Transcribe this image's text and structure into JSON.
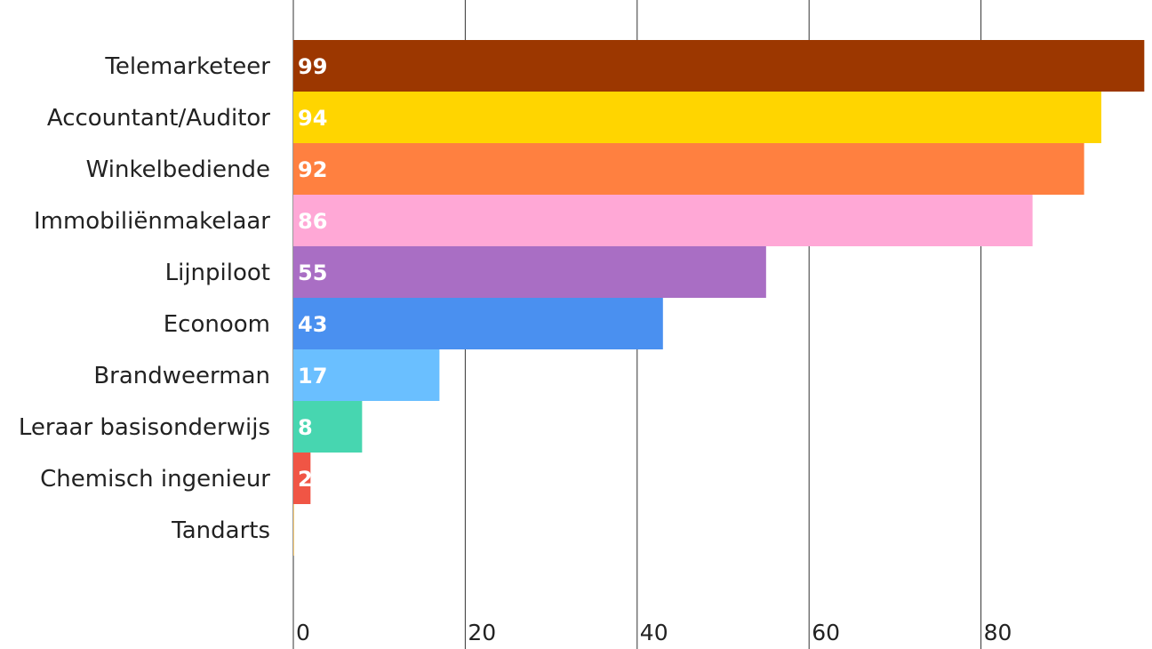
{
  "chart_data": {
    "type": "bar",
    "orientation": "horizontal",
    "categories": [
      "Telemarketeer",
      "Accountant/Auditor",
      "Winkelbediende",
      "Immobiliënmakelaar",
      "Lijnpiloot",
      "Econoom",
      "Brandweerman",
      "Leraar basisonderwijs",
      "Chemisch ingenieur ",
      "Tandarts"
    ],
    "values": [
      99,
      94,
      92,
      86,
      55,
      43,
      17,
      8,
      2,
      0
    ],
    "colors": [
      "#9c3700",
      "#ffd500",
      "#ff8040",
      "#ffa8d6",
      "#a96ec4",
      "#4a90f0",
      "#6abfff",
      "#47d6b0",
      "#f05545",
      "#ffd07a"
    ],
    "value_labels": [
      "99",
      "94",
      "92",
      "86",
      "55",
      "43",
      "17",
      "8",
      "2",
      ""
    ],
    "x_ticks": [
      "0",
      "20",
      "40",
      "60",
      "80"
    ],
    "xlim": [
      0,
      99
    ],
    "grid": true,
    "title": "",
    "xlabel": "",
    "ylabel": "",
    "legend": "none"
  }
}
